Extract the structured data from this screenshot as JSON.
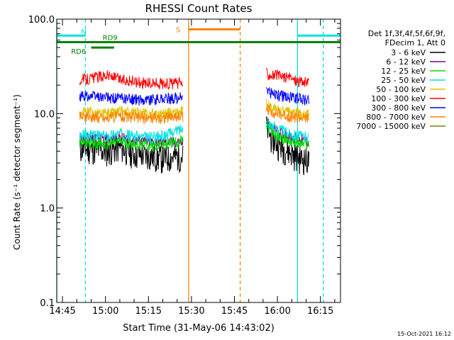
{
  "chart_data": {
    "type": "line",
    "title": "RHESSI Count Rates",
    "xlabel": "Start Time (31-May-06 14:43:02)",
    "ylabel": "Count Rate (s⁻¹ detector segment⁻¹)",
    "yscale": "log",
    "ylim": [
      0.1,
      100
    ],
    "xlim": [
      "14:43",
      "16:22"
    ],
    "x_ticks": [
      "14:45",
      "15:00",
      "15:15",
      "15:30",
      "15:45",
      "16:00",
      "16:15"
    ],
    "y_ticks": [
      "0.1",
      "1.0",
      "10.0",
      "100.0"
    ],
    "grid": false,
    "legend_position": "right",
    "legend_header": [
      "Det 1f,3f,4f,5f,6f,9f,",
      "FDecim 1, Att 0"
    ],
    "timestamp": "15-Oct-2021 16:12",
    "series": [
      {
        "name": "3 - 6 keV",
        "color": "#000000",
        "segments": [
          {
            "t": [
              "14:51",
              "14:56",
              "15:00",
              "15:05",
              "15:10",
              "15:15",
              "15:20",
              "15:27"
            ],
            "v": [
              4.3,
              4.2,
              4.0,
              4.4,
              3.8,
              3.6,
              3.4,
              3.6
            ]
          },
          {
            "t": [
              "15:56",
              "15:58",
              "16:01",
              "16:04",
              "16:08",
              "16:11"
            ],
            "v": [
              7.5,
              5.5,
              4.6,
              4.0,
              3.4,
              3.2
            ]
          }
        ]
      },
      {
        "name": "6 - 12 keV",
        "color": "#800080",
        "segments": [
          {
            "t": [
              "14:51",
              "14:56",
              "15:00",
              "15:05",
              "15:10",
              "15:15",
              "15:20",
              "15:27"
            ],
            "v": [
              5.6,
              5.5,
              5.3,
              5.6,
              5.2,
              5.0,
              4.9,
              5.0
            ]
          },
          {
            "t": [
              "15:56",
              "15:58",
              "16:01",
              "16:04",
              "16:08",
              "16:11"
            ],
            "v": [
              8.5,
              7.0,
              6.3,
              5.8,
              5.3,
              5.0
            ]
          }
        ]
      },
      {
        "name": "12 - 25 keV",
        "color": "#00e000",
        "segments": [
          {
            "t": [
              "14:51",
              "14:56",
              "15:00",
              "15:05",
              "15:10",
              "15:15",
              "15:20",
              "15:27"
            ],
            "v": [
              5.0,
              4.9,
              4.7,
              5.1,
              4.8,
              4.6,
              4.7,
              5.2
            ]
          },
          {
            "t": [
              "15:56",
              "15:58",
              "16:01",
              "16:04",
              "16:08",
              "16:11"
            ],
            "v": [
              7.8,
              6.3,
              5.6,
              5.2,
              4.8,
              4.7
            ]
          }
        ]
      },
      {
        "name": "25 - 50 keV",
        "color": "#00e0e0",
        "segments": [
          {
            "t": [
              "14:51",
              "14:56",
              "15:00",
              "15:05",
              "15:10",
              "15:15",
              "15:20",
              "15:27"
            ],
            "v": [
              6.0,
              5.9,
              5.8,
              6.2,
              5.8,
              5.6,
              5.8,
              7.0
            ]
          },
          {
            "t": [
              "15:56",
              "15:58",
              "16:01",
              "16:04",
              "16:08",
              "16:11"
            ],
            "v": [
              8.5,
              7.5,
              6.8,
              6.2,
              5.8,
              5.6
            ]
          }
        ]
      },
      {
        "name": "50 - 100 keV",
        "color": "#e0c000",
        "segments": [
          {
            "t": [
              "14:51",
              "14:56",
              "15:00",
              "15:05",
              "15:10",
              "15:15",
              "15:20",
              "15:27"
            ],
            "v": [
              10.5,
              10.3,
              10.0,
              10.6,
              10.2,
              10.0,
              10.0,
              10.5
            ]
          },
          {
            "t": [
              "15:56",
              "15:58",
              "16:01",
              "16:04",
              "16:08",
              "16:11"
            ],
            "v": [
              12.5,
              11.5,
              10.8,
              10.3,
              10.0,
              9.8
            ]
          }
        ]
      },
      {
        "name": "100 - 300 keV",
        "color": "#ff0000",
        "segments": [
          {
            "t": [
              "14:51",
              "14:56",
              "15:00",
              "15:05",
              "15:10",
              "15:15",
              "15:20",
              "15:27"
            ],
            "v": [
              23,
              24,
              26,
              23,
              22,
              21,
              21,
              21
            ]
          },
          {
            "t": [
              "15:56",
              "15:58",
              "16:01",
              "16:04",
              "16:08",
              "16:11"
            ],
            "v": [
              27,
              26,
              25,
              24,
              22,
              21
            ]
          }
        ]
      },
      {
        "name": "300 - 800 keV",
        "color": "#0000ff",
        "segments": [
          {
            "t": [
              "14:51",
              "14:56",
              "15:00",
              "15:05",
              "15:10",
              "15:15",
              "15:20",
              "15:27"
            ],
            "v": [
              15.5,
              15.2,
              14.8,
              14.5,
              14.2,
              14.0,
              14.3,
              14.8
            ]
          },
          {
            "t": [
              "15:56",
              "15:58",
              "16:01",
              "16:04",
              "16:08",
              "16:11"
            ],
            "v": [
              18,
              16.5,
              15.5,
              15,
              14.5,
              14
            ]
          }
        ]
      },
      {
        "name": "800 - 7000 keV",
        "color": "#ff8000",
        "segments": [
          {
            "t": [
              "14:51",
              "14:56",
              "15:00",
              "15:05",
              "15:10",
              "15:15",
              "15:20",
              "15:27"
            ],
            "v": [
              9.5,
              9.3,
              9.0,
              9.5,
              9.1,
              9.0,
              9.0,
              9.5
            ]
          },
          {
            "t": [
              "15:56",
              "15:58",
              "16:01",
              "16:04",
              "16:08",
              "16:11"
            ],
            "v": [
              11.5,
              10.5,
              9.8,
              9.4,
              9.0,
              8.8
            ]
          }
        ]
      },
      {
        "name": "7000 - 15000 keV",
        "color": "#808000",
        "segments": []
      }
    ],
    "annotations": {
      "cyan_bars": [
        {
          "label": "N",
          "t0": "14:43",
          "t1": "14:53",
          "v": 67
        },
        {
          "label": "",
          "t0": "16:07",
          "t1": "16:22",
          "v": 67
        }
      ],
      "green_bars": [
        {
          "label": "RD9",
          "t0": "14:43",
          "t1": "16:22",
          "v": 57
        },
        {
          "label": "RD6",
          "t0": "14:55",
          "t1": "15:03",
          "v": 50
        }
      ],
      "orange_bar": {
        "label": "S",
        "t0": "15:29",
        "t1": "15:47",
        "v": 78
      },
      "vlines": [
        {
          "t": "14:43",
          "color": "#00e0e0",
          "style": "solid"
        },
        {
          "t": "14:53",
          "color": "#00e0e0",
          "style": "dashed"
        },
        {
          "t": "15:29",
          "color": "#ff8000",
          "style": "solid"
        },
        {
          "t": "15:47",
          "color": "#ff8000",
          "style": "dashed"
        },
        {
          "t": "16:07",
          "color": "#00e0e0",
          "style": "solid"
        },
        {
          "t": "16:16",
          "color": "#00e0e0",
          "style": "dashed"
        }
      ]
    }
  }
}
